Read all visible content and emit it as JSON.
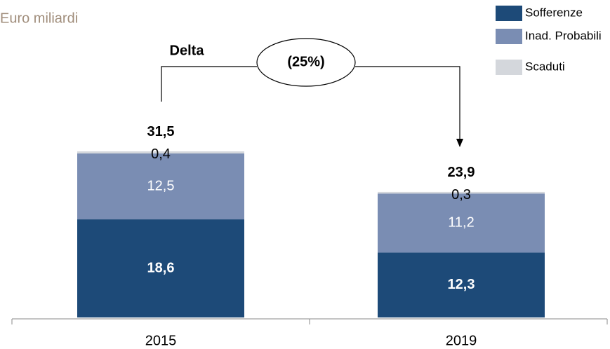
{
  "chart_data": {
    "type": "bar",
    "stacked": true,
    "subtitle": "Euro miliardi",
    "categories": [
      "2015",
      "2019"
    ],
    "series": [
      {
        "name": "Sofferenze",
        "color": "#1d4a78",
        "values": [
          18.6,
          12.3
        ],
        "value_labels": [
          "18,6",
          "12,3"
        ]
      },
      {
        "name": "Inad. Probabili",
        "color": "#7a8db3",
        "values": [
          12.5,
          11.2
        ],
        "value_labels": [
          "12,5",
          "11,2"
        ]
      },
      {
        "name": "Scaduti",
        "color": "#d4d7dc",
        "values": [
          0.4,
          0.3
        ],
        "value_labels": [
          "0,4",
          "0,3"
        ]
      }
    ],
    "totals": [
      31.5,
      23.9
    ],
    "total_labels": [
      "31,5",
      "23,9"
    ],
    "annotations": {
      "label": "Delta",
      "delta": "(25%)"
    },
    "ylim": [
      0,
      40
    ],
    "legend": "top-right"
  }
}
